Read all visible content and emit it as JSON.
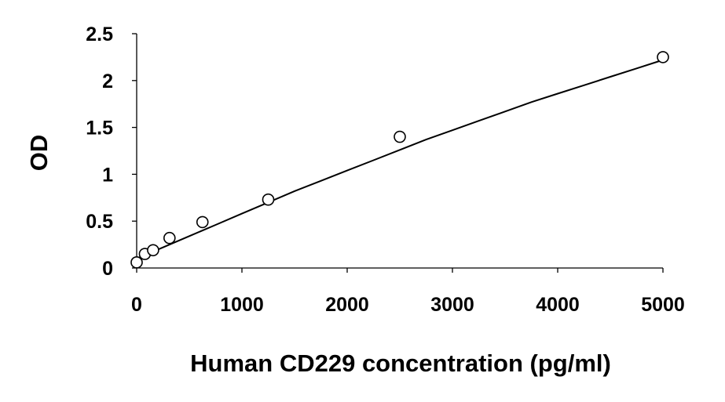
{
  "chart_data": {
    "type": "scatter",
    "title": "",
    "xlabel": "Human CD229 concentration (pg/ml)",
    "ylabel": "OD",
    "xlim": [
      0,
      5000
    ],
    "ylim": [
      0,
      2.5
    ],
    "xticks": [
      0,
      1000,
      2000,
      3000,
      4000,
      5000
    ],
    "yticks": [
      0,
      0.5,
      1,
      1.5,
      2,
      2.5
    ],
    "xtick_labels": [
      "0",
      "1000",
      "2000",
      "3000",
      "4000",
      "5000"
    ],
    "ytick_labels": [
      "0",
      "0.5",
      "1",
      "1.5",
      "2",
      "2.5"
    ],
    "grid": false,
    "legend": "none",
    "series": [
      {
        "marker": "open-circle",
        "x": [
          0,
          78,
          156,
          312,
          625,
          1250,
          2500,
          5000
        ],
        "y": [
          0.06,
          0.15,
          0.19,
          0.32,
          0.49,
          0.73,
          1.4,
          2.25
        ]
      }
    ],
    "fit_curve": {
      "type": "polynomial",
      "x": [
        0,
        250,
        500,
        750,
        1000,
        1250,
        1500,
        1750,
        2000,
        2250,
        2500,
        2750,
        3000,
        3250,
        3500,
        3750,
        4000,
        4250,
        4500,
        4750,
        5000
      ],
      "y": [
        0.1,
        0.22,
        0.34,
        0.46,
        0.58,
        0.7,
        0.82,
        0.93,
        1.04,
        1.15,
        1.26,
        1.37,
        1.47,
        1.57,
        1.67,
        1.77,
        1.86,
        1.95,
        2.04,
        2.13,
        2.22
      ]
    },
    "colors": {
      "axis": "#000000",
      "marker_stroke": "#000000",
      "curve": "#000000"
    }
  }
}
